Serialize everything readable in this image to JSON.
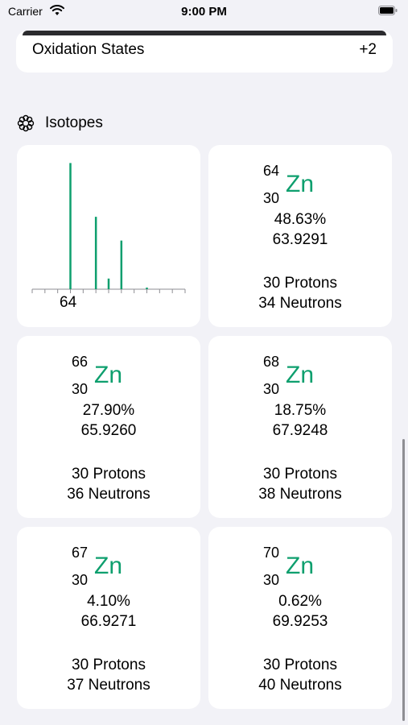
{
  "status_bar": {
    "carrier": "Carrier",
    "time": "9:00 PM"
  },
  "oxidation": {
    "label": "Oxidation States",
    "value": "+2"
  },
  "isotopes_section": {
    "title": "Isotopes",
    "icon": "atom-icon"
  },
  "chart_data": {
    "type": "bar",
    "x": [
      64,
      66,
      67,
      68,
      70
    ],
    "values": [
      48.63,
      27.9,
      4.1,
      18.75,
      0.62
    ],
    "tick_labels": [
      "64"
    ],
    "xlim": [
      61,
      73
    ],
    "ylim": [
      0,
      50
    ],
    "color": "#0E9F6E"
  },
  "isotopes": [
    {
      "mass_number": "64",
      "atomic_number": "30",
      "symbol": "Zn",
      "abundance": "48.63%",
      "mass": "63.9291",
      "protons": "30 Protons",
      "neutrons": "34 Neutrons"
    },
    {
      "mass_number": "66",
      "atomic_number": "30",
      "symbol": "Zn",
      "abundance": "27.90%",
      "mass": "65.9260",
      "protons": "30 Protons",
      "neutrons": "36 Neutrons"
    },
    {
      "mass_number": "68",
      "atomic_number": "30",
      "symbol": "Zn",
      "abundance": "18.75%",
      "mass": "67.9248",
      "protons": "30 Protons",
      "neutrons": "38 Neutrons"
    },
    {
      "mass_number": "67",
      "atomic_number": "30",
      "symbol": "Zn",
      "abundance": "4.10%",
      "mass": "66.9271",
      "protons": "30 Protons",
      "neutrons": "37 Neutrons"
    },
    {
      "mass_number": "70",
      "atomic_number": "30",
      "symbol": "Zn",
      "abundance": "0.62%",
      "mass": "69.9253",
      "protons": "30 Protons",
      "neutrons": "40 Neutrons"
    }
  ]
}
